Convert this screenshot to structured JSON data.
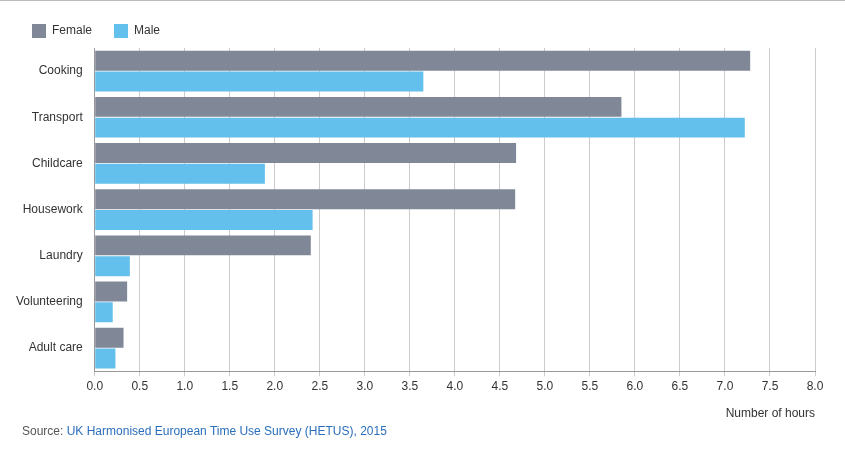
{
  "chart_data": {
    "type": "bar",
    "orientation": "horizontal",
    "xlabel": "Number of hours",
    "source": "Source: UK Harmonised European Time Use Survey (HETUS), 2015",
    "categories": [
      "Cooking",
      "Transport",
      "Childcare",
      "Housework",
      "Laundry",
      "Volunteering",
      "Adult care"
    ],
    "series": [
      {
        "name": "Female",
        "color": "#808797",
        "values": [
          7.28,
          5.85,
          4.68,
          4.67,
          2.4,
          0.36,
          0.32
        ]
      },
      {
        "name": "Male",
        "color": "#63bfeb",
        "values": [
          3.65,
          7.22,
          1.89,
          2.42,
          0.39,
          0.2,
          0.23
        ]
      }
    ],
    "xlim": [
      0,
      8
    ],
    "xticks": [
      {
        "value": 0,
        "label": "0.0"
      },
      0.5,
      {
        "value": 1,
        "label": "1.0"
      },
      1.5,
      {
        "value": 2,
        "label": "2.0"
      },
      2.5,
      {
        "value": 3,
        "label": "3.0"
      },
      3.5,
      {
        "value": 4,
        "label": "4.0"
      },
      4.5,
      {
        "value": 5,
        "label": "5.0"
      },
      5.5,
      {
        "value": 6,
        "label": "6.0"
      },
      6.5,
      {
        "value": 7,
        "label": "7.0"
      },
      7.5,
      {
        "value": 8,
        "label": "8.0"
      }
    ],
    "grid": true,
    "legend": "top-left"
  }
}
